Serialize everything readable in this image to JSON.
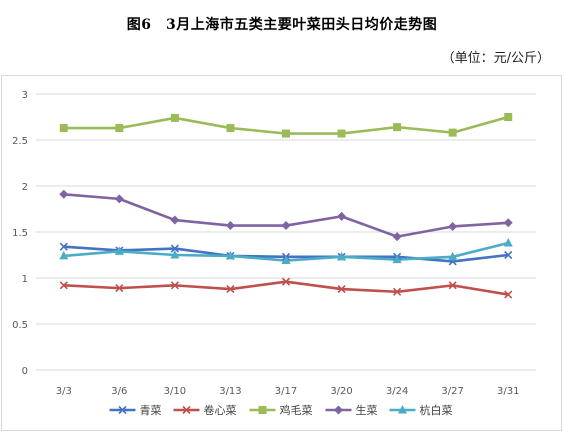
{
  "title": "图6　3月上海市五类主要叶菜田头日均价走势图",
  "unit": "（单位：元/公斤）",
  "chart_data": {
    "type": "line",
    "title": "图6　3月上海市五类主要叶菜田头日均价走势图",
    "unit": "（单位：元/公斤）",
    "categories": [
      "3/3",
      "3/6",
      "3/10",
      "3/13",
      "3/17",
      "3/20",
      "3/24",
      "3/27",
      "3/31"
    ],
    "ylim": [
      0,
      3
    ],
    "yticks": [
      "0",
      "0.5",
      "1",
      "1.5",
      "2",
      "2.5",
      "3"
    ],
    "grid": true,
    "legend_position": "bottom",
    "series": [
      {
        "name": "青菜",
        "color": "#4472C4",
        "marker": "x",
        "values": [
          1.34,
          1.3,
          1.32,
          1.24,
          1.23,
          1.23,
          1.23,
          1.18,
          1.25
        ]
      },
      {
        "name": "卷心菜",
        "color": "#C0504D",
        "marker": "x",
        "values": [
          0.92,
          0.89,
          0.92,
          0.88,
          0.96,
          0.88,
          0.85,
          0.92,
          0.82
        ]
      },
      {
        "name": "鸡毛菜",
        "color": "#9BBB59",
        "marker": "square",
        "values": [
          2.63,
          2.63,
          2.74,
          2.63,
          2.57,
          2.57,
          2.64,
          2.58,
          2.75
        ]
      },
      {
        "name": "生菜",
        "color": "#8064A2",
        "marker": "diamond",
        "values": [
          1.91,
          1.86,
          1.63,
          1.57,
          1.57,
          1.67,
          1.45,
          1.56,
          1.6
        ]
      },
      {
        "name": "杭白菜",
        "color": "#4BACC6",
        "marker": "triangle",
        "values": [
          1.24,
          1.29,
          1.25,
          1.24,
          1.19,
          1.23,
          1.2,
          1.23,
          1.38
        ]
      }
    ]
  }
}
